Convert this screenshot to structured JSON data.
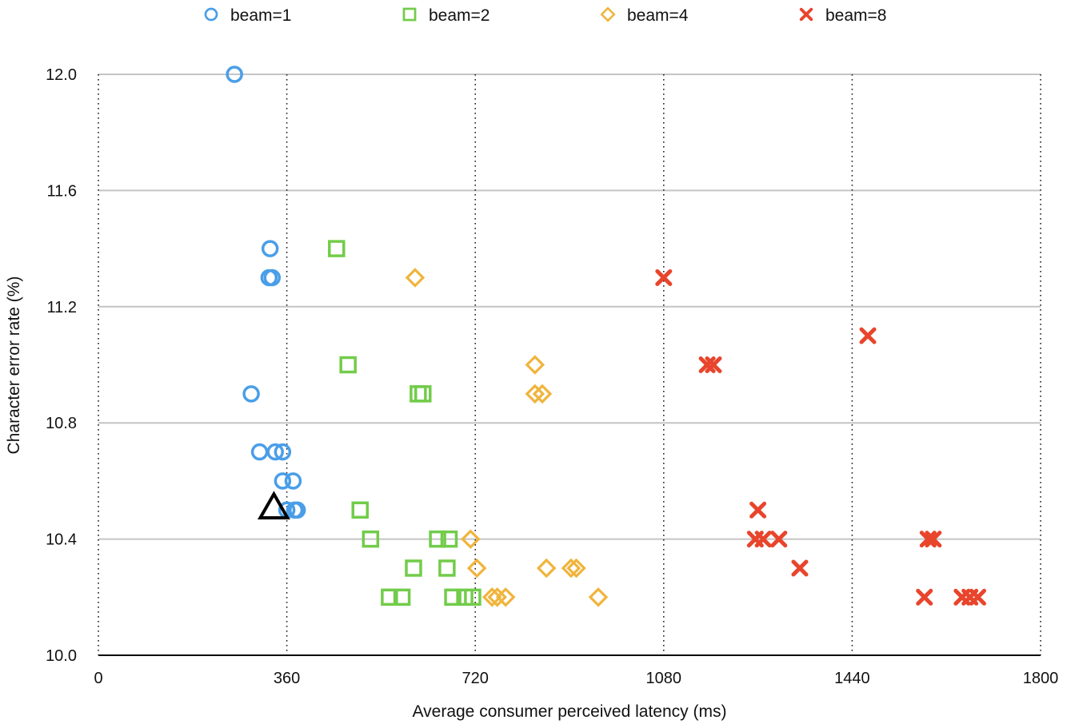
{
  "chart_data": {
    "type": "scatter",
    "title": "",
    "xlabel": "Average consumer perceived latency (ms)",
    "ylabel": "Character error rate (%)",
    "xlim": [
      0,
      1800
    ],
    "ylim": [
      10.0,
      12.0
    ],
    "x_ticks": [
      "0",
      "360",
      "720",
      "1080",
      "1440",
      "1800"
    ],
    "y_ticks": [
      "10.0",
      "10.4",
      "10.8",
      "11.2",
      "11.6",
      "12.0"
    ],
    "grid": "horizontal solid, vertical dotted",
    "legend_position": "top",
    "series": [
      {
        "name": "beam=1",
        "marker": "circle",
        "color": "#4a9ee8",
        "points": [
          [
            260,
            12.0
          ],
          [
            328,
            11.4
          ],
          [
            326,
            11.3
          ],
          [
            332,
            11.3
          ],
          [
            292,
            10.9
          ],
          [
            308,
            10.7
          ],
          [
            338,
            10.7
          ],
          [
            352,
            10.7
          ],
          [
            352,
            10.6
          ],
          [
            372,
            10.6
          ],
          [
            360,
            10.5
          ],
          [
            375,
            10.5
          ],
          [
            380,
            10.5
          ]
        ]
      },
      {
        "name": "beam=2",
        "marker": "square",
        "color": "#72cc4a",
        "points": [
          [
            455,
            11.4
          ],
          [
            477,
            11.0
          ],
          [
            611,
            10.9
          ],
          [
            620,
            10.9
          ],
          [
            500,
            10.5
          ],
          [
            520,
            10.4
          ],
          [
            648,
            10.4
          ],
          [
            670,
            10.4
          ],
          [
            602,
            10.3
          ],
          [
            666,
            10.3
          ],
          [
            556,
            10.2
          ],
          [
            580,
            10.2
          ],
          [
            677,
            10.2
          ],
          [
            700,
            10.2
          ],
          [
            715,
            10.2
          ]
        ]
      },
      {
        "name": "beam=4",
        "marker": "diamond",
        "color": "#f0b43c",
        "points": [
          [
            605,
            11.3
          ],
          [
            834,
            11.0
          ],
          [
            834,
            10.9
          ],
          [
            848,
            10.9
          ],
          [
            711,
            10.4
          ],
          [
            723,
            10.3
          ],
          [
            856,
            10.3
          ],
          [
            903,
            10.3
          ],
          [
            913,
            10.3
          ],
          [
            752,
            10.2
          ],
          [
            762,
            10.2
          ],
          [
            778,
            10.2
          ],
          [
            955,
            10.2
          ]
        ]
      },
      {
        "name": "beam=8",
        "marker": "cross",
        "color": "#e8452c",
        "points": [
          [
            1080,
            11.3
          ],
          [
            1470,
            11.1
          ],
          [
            1163,
            11.0
          ],
          [
            1175,
            11.0
          ],
          [
            1260,
            10.5
          ],
          [
            1255,
            10.4
          ],
          [
            1270,
            10.4
          ],
          [
            1300,
            10.4
          ],
          [
            1585,
            10.4
          ],
          [
            1595,
            10.4
          ],
          [
            1340,
            10.3
          ],
          [
            1578,
            10.2
          ],
          [
            1650,
            10.2
          ],
          [
            1665,
            10.2
          ],
          [
            1680,
            10.2
          ]
        ]
      }
    ],
    "annotations": [
      {
        "marker": "triangle",
        "color": "#000000",
        "x": 320,
        "y": 10.5
      }
    ]
  }
}
